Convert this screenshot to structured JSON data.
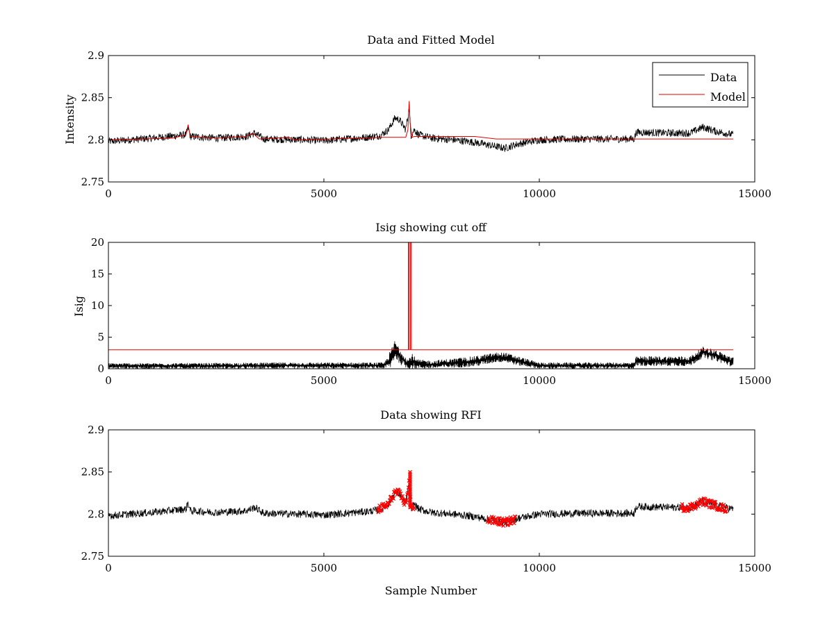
{
  "colors": {
    "data": "#000000",
    "model": "#e00000",
    "rfi": "#ff0000",
    "axes": "#000000",
    "background": "#ffffff"
  },
  "chart_data": [
    {
      "type": "line",
      "title": "Data and Fitted Model",
      "xlabel": "",
      "ylabel": "Intensity",
      "xlim": [
        0,
        15000
      ],
      "ylim": [
        2.75,
        2.9
      ],
      "xticks": [
        0,
        5000,
        10000,
        15000
      ],
      "xtick_labels": [
        "0",
        "5000",
        "10000",
        "15000"
      ],
      "yticks": [
        2.75,
        2.8,
        2.85,
        2.9
      ],
      "ytick_labels": [
        "2.75",
        "2.8",
        "2.85",
        "2.9"
      ],
      "legend": {
        "position": "top-right",
        "entries": [
          {
            "label": "Data",
            "color": "#000000"
          },
          {
            "label": "Model",
            "color": "#e00000"
          }
        ]
      },
      "series": [
        {
          "name": "Data",
          "color": "#000000",
          "kind": "noisy",
          "noise": 0.0045,
          "x": [
            0,
            1000,
            1800,
            1850,
            1900,
            2500,
            3200,
            3400,
            3600,
            4500,
            5000,
            6000,
            6300,
            6500,
            6650,
            6750,
            6900,
            6980,
            7020,
            7100,
            7200,
            7500,
            8000,
            8500,
            9000,
            9200,
            9500,
            10000,
            11000,
            12200,
            12250,
            13000,
            13500,
            13800,
            14100,
            14500
          ],
          "y": [
            2.798,
            2.802,
            2.806,
            2.814,
            2.804,
            2.802,
            2.804,
            2.808,
            2.801,
            2.8,
            2.799,
            2.803,
            2.805,
            2.812,
            2.826,
            2.824,
            2.812,
            2.838,
            2.805,
            2.812,
            2.806,
            2.802,
            2.8,
            2.797,
            2.792,
            2.79,
            2.795,
            2.8,
            2.801,
            2.801,
            2.809,
            2.808,
            2.808,
            2.815,
            2.81,
            2.806
          ]
        },
        {
          "name": "Model",
          "color": "#e00000",
          "kind": "line",
          "x": [
            0,
            1500,
            1800,
            1850,
            1900,
            2500,
            3200,
            3350,
            3500,
            4200,
            4300,
            4500,
            6400,
            6900,
            6950,
            6980,
            7000,
            7050,
            7100,
            8000,
            8500,
            9000,
            10000,
            12200,
            12250,
            14500
          ],
          "y": [
            2.8,
            2.802,
            2.806,
            2.818,
            2.804,
            2.802,
            2.804,
            2.808,
            2.801,
            2.803,
            2.8,
            2.8,
            2.803,
            2.803,
            2.812,
            2.846,
            2.82,
            2.803,
            2.804,
            2.804,
            2.804,
            2.801,
            2.801,
            2.801,
            2.801,
            2.801
          ]
        }
      ]
    },
    {
      "type": "line",
      "title": "Isig showing cut off",
      "xlabel": "",
      "ylabel": "Isig",
      "xlim": [
        0,
        15000
      ],
      "ylim": [
        0,
        20
      ],
      "xticks": [
        0,
        5000,
        10000,
        15000
      ],
      "xtick_labels": [
        "0",
        "5000",
        "10000",
        "15000"
      ],
      "yticks": [
        0,
        5,
        10,
        15,
        20
      ],
      "ytick_labels": [
        "0",
        "5",
        "10",
        "15",
        "20"
      ],
      "series": [
        {
          "name": "Isig",
          "color": "#000000",
          "kind": "band",
          "x": [
            0,
            2000,
            4000,
            6000,
            6400,
            6550,
            6650,
            6800,
            6950,
            7050,
            7150,
            7500,
            8500,
            9000,
            9200,
            9500,
            10000,
            11500,
            12200,
            12250,
            13500,
            13800,
            14100,
            14500
          ],
          "upper": [
            0.9,
            0.9,
            1.0,
            1.0,
            1.0,
            3.0,
            4.6,
            3.0,
            1.5,
            2.5,
            1.5,
            1.3,
            2.0,
            2.6,
            2.6,
            2.0,
            1.0,
            1.0,
            1.0,
            2.0,
            2.0,
            3.5,
            3.0,
            1.8
          ],
          "lower": [
            0,
            0,
            0,
            0,
            0,
            0,
            1.6,
            0.5,
            0,
            0,
            0,
            0,
            0.3,
            1.0,
            1.0,
            0.5,
            0,
            0,
            0,
            0.4,
            0.4,
            1.7,
            1.2,
            0.2
          ]
        },
        {
          "name": "Cut off",
          "color": "#e00000",
          "kind": "line",
          "x": [
            0,
            6960,
            6961,
            6980,
            6981,
            7010,
            7011,
            7030,
            7031,
            14500
          ],
          "y": [
            3,
            3,
            20,
            20,
            3,
            3,
            20,
            20,
            3,
            3
          ]
        }
      ]
    },
    {
      "type": "line",
      "title": "Data showing RFI",
      "xlabel": "Sample Number",
      "ylabel": "",
      "xlim": [
        0,
        15000
      ],
      "ylim": [
        2.75,
        2.9
      ],
      "xticks": [
        0,
        5000,
        10000,
        15000
      ],
      "xtick_labels": [
        "0",
        "5000",
        "10000",
        "15000"
      ],
      "yticks": [
        2.75,
        2.8,
        2.85,
        2.9
      ],
      "ytick_labels": [
        "2.75",
        "2.8",
        "2.85",
        "2.9"
      ],
      "series": [
        {
          "name": "Data",
          "color": "#000000",
          "kind": "noisy",
          "noise": 0.0045,
          "x": [
            0,
            1000,
            1800,
            1850,
            1900,
            2500,
            3200,
            3400,
            3600,
            4500,
            5000,
            6000,
            6300,
            6500,
            6650,
            6750,
            6900,
            6980,
            7020,
            7100,
            7200,
            7500,
            8000,
            8500,
            9000,
            9200,
            9500,
            10000,
            11000,
            12200,
            12250,
            13000,
            13500,
            13800,
            14100,
            14500
          ],
          "y": [
            2.798,
            2.802,
            2.806,
            2.814,
            2.804,
            2.802,
            2.804,
            2.808,
            2.801,
            2.8,
            2.799,
            2.803,
            2.805,
            2.812,
            2.826,
            2.824,
            2.812,
            2.838,
            2.805,
            2.812,
            2.806,
            2.802,
            2.8,
            2.797,
            2.792,
            2.79,
            2.795,
            2.8,
            2.801,
            2.801,
            2.809,
            2.808,
            2.808,
            2.815,
            2.81,
            2.806
          ]
        },
        {
          "name": "RFI",
          "color": "#ff0000",
          "kind": "segments",
          "segments": [
            {
              "x": [
                6250,
                6500,
                6650,
                6750,
                6900,
                6980,
                7020,
                7100
              ],
              "y": [
                2.805,
                2.812,
                2.826,
                2.824,
                2.812,
                2.838,
                2.808,
                2.81
              ]
            },
            {
              "x": [
                8800,
                9000,
                9200,
                9450
              ],
              "y": [
                2.793,
                2.792,
                2.79,
                2.794
              ]
            },
            {
              "x": [
                13300,
                13500,
                13800,
                14100,
                14350
              ],
              "y": [
                2.808,
                2.808,
                2.815,
                2.81,
                2.806
              ]
            }
          ]
        }
      ]
    }
  ]
}
